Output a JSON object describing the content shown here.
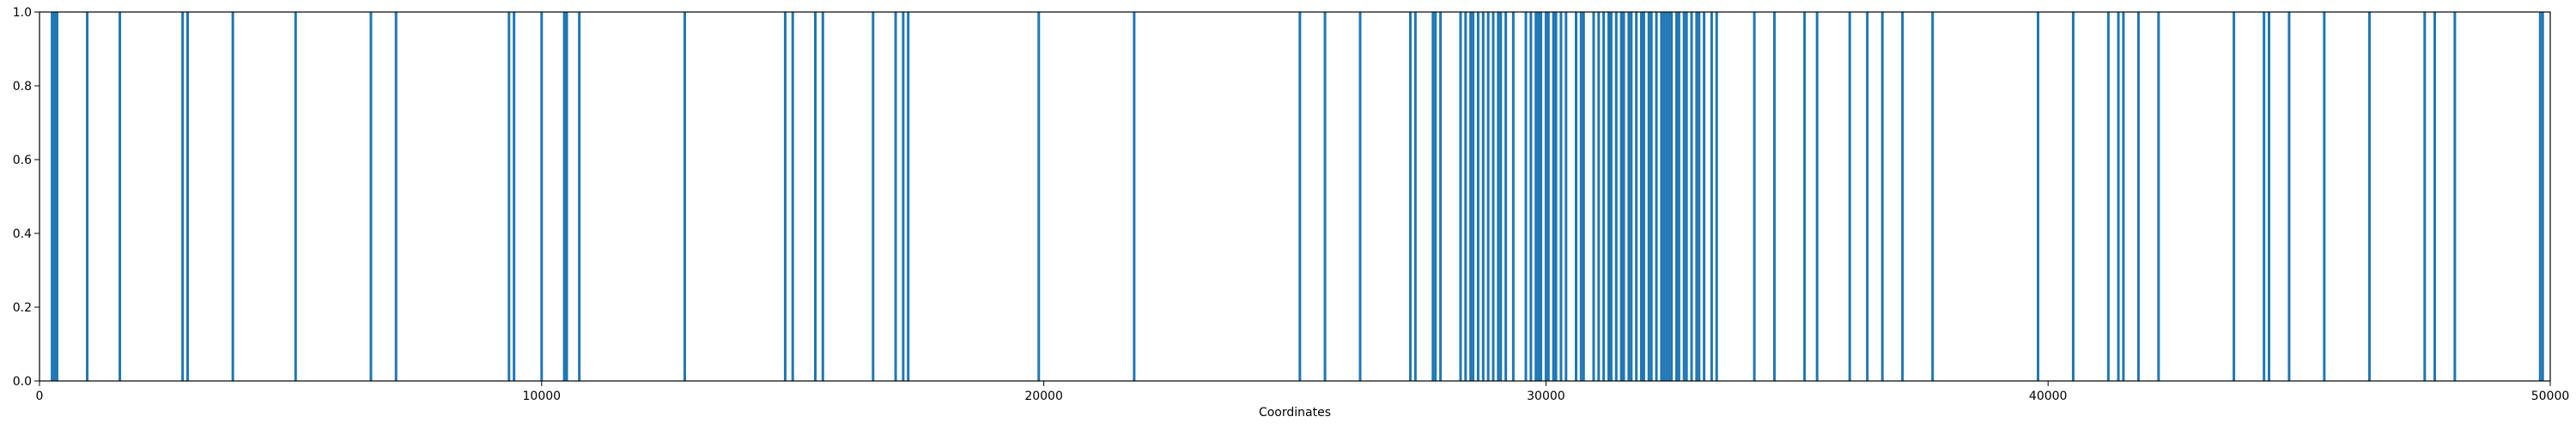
{
  "chart_data": {
    "type": "bar",
    "title": "",
    "xlabel": "Coordinates",
    "ylabel": "",
    "xlim": [
      0,
      50000
    ],
    "ylim": [
      0,
      1.0
    ],
    "x_ticks": [
      0,
      10000,
      20000,
      30000,
      40000,
      50000
    ],
    "y_ticks": [
      0.0,
      0.2,
      0.4,
      0.6,
      0.8,
      1.0
    ],
    "x_tick_labels": [
      "0",
      "10000",
      "20000",
      "30000",
      "40000",
      "50000"
    ],
    "y_tick_labels": [
      "0.0",
      "0.2",
      "0.4",
      "0.6",
      "0.8",
      "1.0"
    ],
    "grid": false,
    "legend": false,
    "bar_color": "#1f77b4",
    "series": [
      {
        "value": 1,
        "x": [
          250,
          300,
          350,
          950,
          1600,
          2850,
          2950,
          3850,
          5100,
          6600,
          7100,
          9350,
          9450,
          10000,
          10450,
          10500,
          10750,
          12850,
          14850,
          15000,
          15450,
          15600,
          16600,
          17050,
          17200,
          17300,
          19900,
          21800,
          25100,
          25600,
          26300,
          27300,
          27400,
          27750,
          27800,
          27900,
          28300,
          28400,
          28500,
          28550,
          28650,
          28750,
          28850,
          28950,
          29050,
          29100,
          29200,
          29350,
          29600,
          29700,
          29800,
          29850,
          29900,
          30000,
          30050,
          30150,
          30200,
          30300,
          30400,
          30600,
          30700,
          30750,
          30950,
          31050,
          31150,
          31250,
          31300,
          31400,
          31500,
          31550,
          31650,
          31700,
          31800,
          31900,
          31950,
          32050,
          32100,
          32200,
          32300,
          32350,
          32400,
          32450,
          32500,
          32600,
          32650,
          32750,
          32800,
          32900,
          33000,
          33050,
          33150,
          33300,
          33400,
          34150,
          34550,
          35150,
          35400,
          36050,
          36400,
          36700,
          37100,
          37700,
          39800,
          40500,
          41200,
          41400,
          41500,
          41800,
          42200,
          43700,
          44300,
          44400,
          44800,
          45500,
          46400,
          47500,
          47700,
          48100,
          49800,
          49850
        ]
      }
    ]
  }
}
